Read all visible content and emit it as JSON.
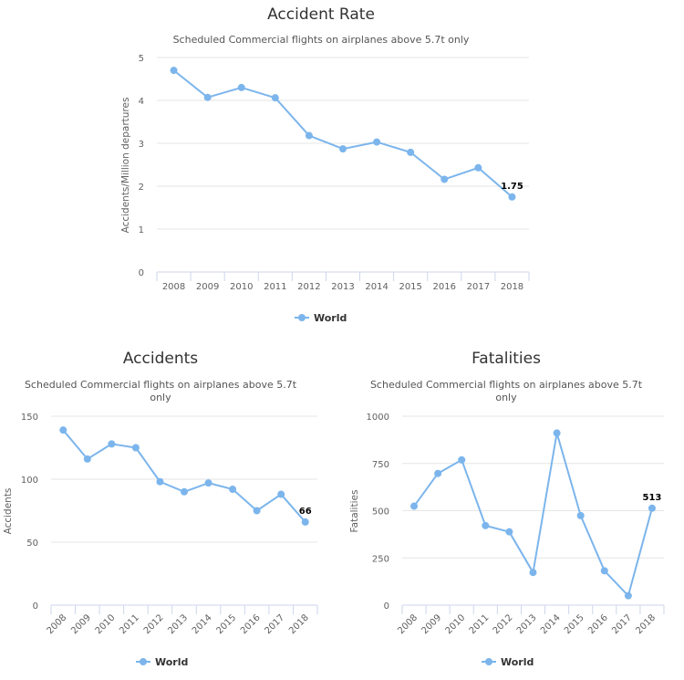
{
  "colors": {
    "series": "#7cb5ec",
    "grid": "#e6e6e6",
    "axis": "#ccd6eb"
  },
  "chart_data": [
    {
      "type": "line",
      "title": "Accident Rate",
      "subtitle": "Scheduled Commercial flights on airplanes above 5.7t only",
      "xlabel": "",
      "ylabel": "Accidents/Million departures",
      "categories": [
        "2008",
        "2009",
        "2010",
        "2011",
        "2012",
        "2013",
        "2014",
        "2015",
        "2016",
        "2017",
        "2018"
      ],
      "ylim": [
        0,
        5
      ],
      "yticks": [
        "0",
        "1",
        "2",
        "3",
        "4",
        "5"
      ],
      "series": [
        {
          "name": "World",
          "values": [
            4.7,
            4.07,
            4.3,
            4.06,
            3.18,
            2.87,
            3.03,
            2.79,
            2.16,
            2.43,
            1.75
          ]
        }
      ],
      "data_label": "1.75",
      "legend": "bottom-center",
      "grid": true
    },
    {
      "type": "line",
      "title": "Accidents",
      "subtitle_lines": [
        "Scheduled Commercial flights on airplanes above 5.7t",
        "only"
      ],
      "xlabel": "",
      "ylabel": "Accidents",
      "categories": [
        "2008",
        "2009",
        "2010",
        "2011",
        "2012",
        "2013",
        "2014",
        "2015",
        "2016",
        "2017",
        "2018"
      ],
      "ylim": [
        0,
        150
      ],
      "yticks": [
        "0",
        "50",
        "100",
        "150"
      ],
      "series": [
        {
          "name": "World",
          "values": [
            139,
            116,
            128,
            125,
            98,
            90,
            97,
            92,
            75,
            88,
            66
          ]
        }
      ],
      "data_label": "66",
      "legend": "bottom-center",
      "grid": true
    },
    {
      "type": "line",
      "title": "Fatalities",
      "subtitle_lines": [
        "Scheduled Commercial flights on airplanes above 5.7t",
        "only"
      ],
      "xlabel": "",
      "ylabel": "Fatalities",
      "categories": [
        "2008",
        "2009",
        "2010",
        "2011",
        "2012",
        "2013",
        "2014",
        "2015",
        "2016",
        "2017",
        "2018"
      ],
      "ylim": [
        0,
        1000
      ],
      "yticks": [
        "0",
        "250",
        "500",
        "750",
        "1000"
      ],
      "series": [
        {
          "name": "World",
          "values": [
            524,
            697,
            769,
            421,
            388,
            173,
            911,
            474,
            182,
            50,
            513
          ]
        }
      ],
      "data_label": "513",
      "legend": "bottom-center",
      "grid": true
    }
  ]
}
